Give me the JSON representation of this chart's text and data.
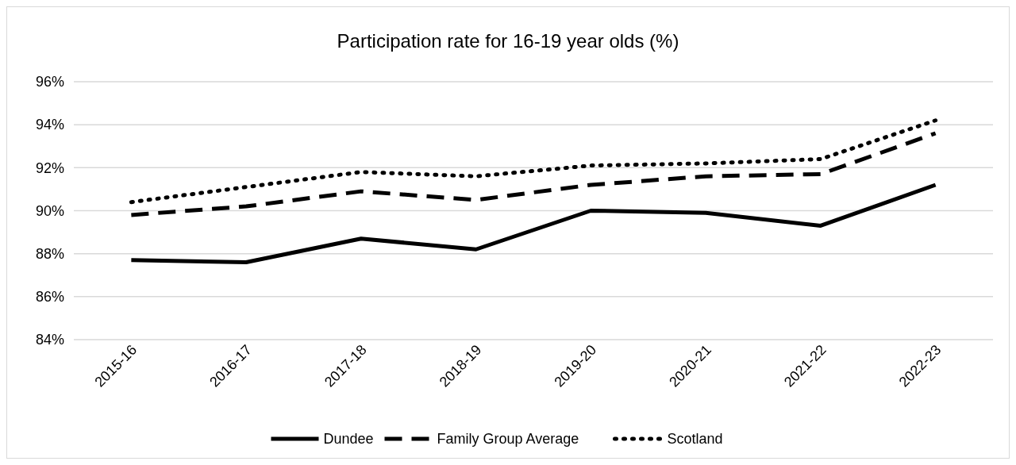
{
  "chart_data": {
    "type": "line",
    "title": "Participation rate for 16-19 year olds (%)",
    "categories": [
      "2015-16",
      "2016-17",
      "2017-18",
      "2018-19",
      "2019-20",
      "2020-21",
      "2021-22",
      "2022-23"
    ],
    "series": [
      {
        "name": "Dundee",
        "color": "#000000",
        "line_style": "solid",
        "values": [
          87.7,
          87.6,
          88.7,
          88.2,
          90.0,
          89.9,
          89.3,
          91.2
        ]
      },
      {
        "name": "Family Group Average",
        "color": "#000000",
        "line_style": "dashed",
        "values": [
          89.8,
          90.2,
          90.9,
          90.5,
          91.2,
          91.6,
          91.7,
          93.6
        ]
      },
      {
        "name": "Scotland",
        "color": "#000000",
        "line_style": "dotted",
        "values": [
          90.4,
          91.1,
          91.8,
          91.6,
          92.1,
          92.2,
          92.4,
          94.2
        ]
      }
    ],
    "ylim": [
      84,
      96
    ],
    "yticks": [
      {
        "value": 84,
        "label": "84%"
      },
      {
        "value": 86,
        "label": "86%"
      },
      {
        "value": 88,
        "label": "88%"
      },
      {
        "value": 90,
        "label": "90%"
      },
      {
        "value": 92,
        "label": "92%"
      },
      {
        "value": 94,
        "label": "94%"
      },
      {
        "value": 96,
        "label": "96%"
      }
    ],
    "grid": "y",
    "legend": "bottom"
  }
}
